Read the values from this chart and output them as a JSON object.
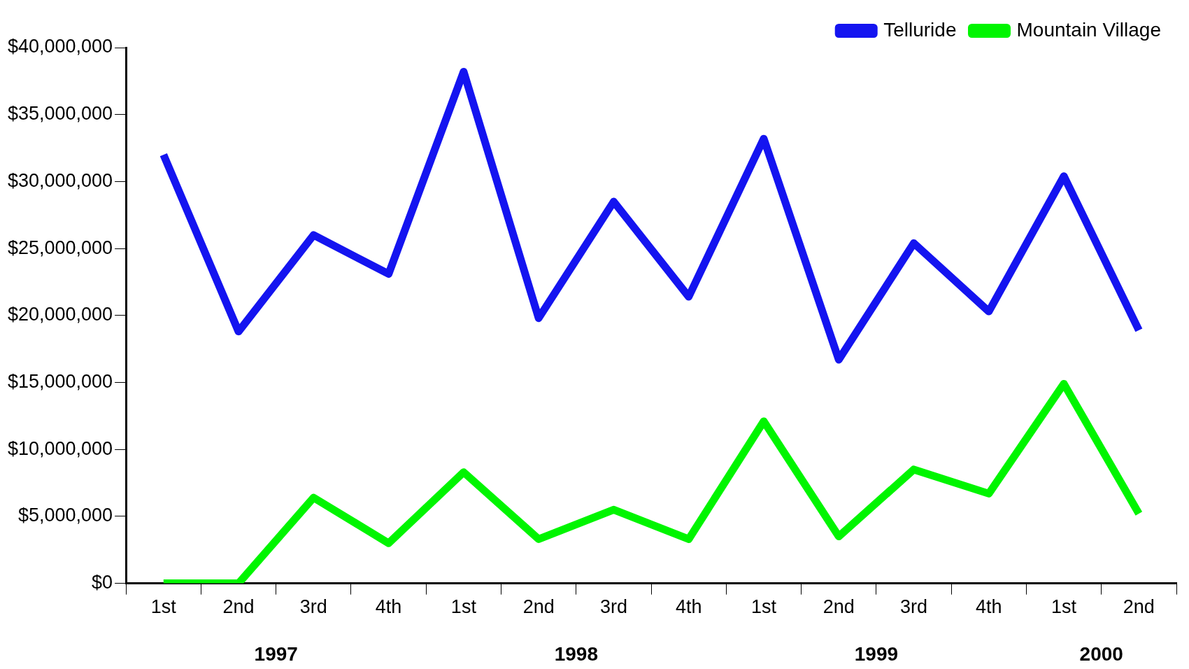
{
  "chart_data": {
    "type": "line",
    "categories": [
      "1st",
      "2nd",
      "3rd",
      "4th",
      "1st",
      "2nd",
      "3rd",
      "4th",
      "1st",
      "2nd",
      "3rd",
      "4th",
      "1st",
      "2nd"
    ],
    "series": [
      {
        "name": "Telluride",
        "color": "#1414f0",
        "values": [
          32000000,
          18800000,
          26000000,
          23100000,
          38200000,
          19800000,
          28500000,
          21400000,
          33200000,
          16700000,
          25400000,
          20300000,
          30400000,
          18900000
        ]
      },
      {
        "name": "Mountain Village",
        "color": "#00f500",
        "values": [
          0,
          0,
          6400000,
          3000000,
          8300000,
          3300000,
          5500000,
          3300000,
          12100000,
          3500000,
          8500000,
          6700000,
          14900000,
          5200000
        ]
      }
    ],
    "annotations": [
      "1997",
      "1998",
      "1999",
      "2000"
    ],
    "ylim": [
      0,
      40000000
    ],
    "yticks": [
      {
        "value": 0,
        "label": "$0"
      },
      {
        "value": 5000000,
        "label": "$5,000,000"
      },
      {
        "value": 10000000,
        "label": "$10,000,000"
      },
      {
        "value": 15000000,
        "label": "$15,000,000"
      },
      {
        "value": 20000000,
        "label": "$20,000,000"
      },
      {
        "value": 25000000,
        "label": "$25,000,000"
      },
      {
        "value": 30000000,
        "label": "$30,000,000"
      },
      {
        "value": 35000000,
        "label": "$35,000,000"
      },
      {
        "value": 40000000,
        "label": "$40,000,000"
      }
    ],
    "grid": false,
    "legend": "top right",
    "marker": "none",
    "line_style": "solid"
  }
}
